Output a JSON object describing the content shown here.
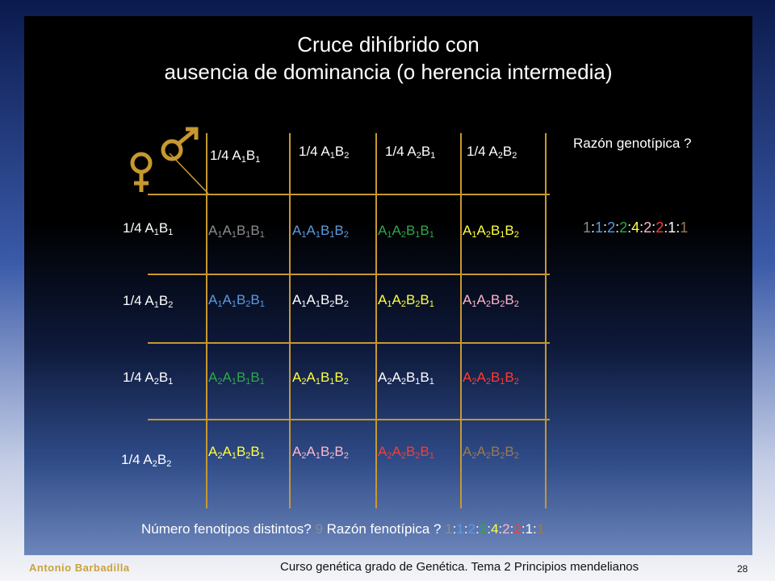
{
  "title_line1": "Cruce dihíbrido con",
  "title_line2": "ausencia de dominancia (o herencia intermedia)",
  "symbols": {
    "female": "female-symbol",
    "male": "male-symbol"
  },
  "header_genotype_label": "Razón genotípica ?",
  "columns": [
    [
      {
        "t": "1/4 A"
      },
      {
        "s": "1"
      },
      {
        "t": "B"
      },
      {
        "s": "1"
      }
    ],
    [
      {
        "t": "1/4 A"
      },
      {
        "s": "1"
      },
      {
        "t": "B"
      },
      {
        "s": "2"
      }
    ],
    [
      {
        "t": "1/4 A"
      },
      {
        "s": "2"
      },
      {
        "t": "B"
      },
      {
        "s": "1"
      }
    ],
    [
      {
        "t": "1/4 A"
      },
      {
        "s": "2"
      },
      {
        "t": "B"
      },
      {
        "s": "2"
      }
    ]
  ],
  "rows": [
    [
      {
        "t": "1/4 A"
      },
      {
        "s": "1"
      },
      {
        "t": "B"
      },
      {
        "s": "1"
      }
    ],
    [
      {
        "t": "1/4 A"
      },
      {
        "s": "1"
      },
      {
        "t": "B"
      },
      {
        "s": "2"
      }
    ],
    [
      {
        "t": "1/4 A"
      },
      {
        "s": "2"
      },
      {
        "t": "B"
      },
      {
        "s": "1"
      }
    ],
    [
      {
        "t": "1/4 A"
      },
      {
        "s": "2"
      },
      {
        "t": "B"
      },
      {
        "s": "2"
      }
    ]
  ],
  "cells": [
    [
      {
        "color": "#8c8c8c",
        "parts": [
          {
            "t": "A"
          },
          {
            "s": "1"
          },
          {
            "t": "A"
          },
          {
            "s": "1"
          },
          {
            "t": "B"
          },
          {
            "s": "1"
          },
          {
            "t": "B"
          },
          {
            "s": "1"
          }
        ]
      },
      {
        "color": "#5b9be0",
        "parts": [
          {
            "t": "A"
          },
          {
            "s": "1"
          },
          {
            "t": "A"
          },
          {
            "s": "1"
          },
          {
            "t": "B"
          },
          {
            "s": "1"
          },
          {
            "t": "B"
          },
          {
            "s": "2"
          }
        ]
      },
      {
        "color": "#2ea84a",
        "parts": [
          {
            "t": "A"
          },
          {
            "s": "1"
          },
          {
            "t": "A"
          },
          {
            "s": "2"
          },
          {
            "t": "B"
          },
          {
            "s": "1"
          },
          {
            "t": "B"
          },
          {
            "s": "1"
          }
        ]
      },
      {
        "color": "#ffff40",
        "parts": [
          {
            "t": "A"
          },
          {
            "s": "1"
          },
          {
            "t": "A"
          },
          {
            "s": "2"
          },
          {
            "t": "B"
          },
          {
            "s": "1"
          },
          {
            "t": "B"
          },
          {
            "s": "2"
          }
        ]
      }
    ],
    [
      {
        "color": "#5b9be0",
        "parts": [
          {
            "t": "A"
          },
          {
            "s": "1"
          },
          {
            "t": "A"
          },
          {
            "s": "1"
          },
          {
            "t": "B"
          },
          {
            "s": "2"
          },
          {
            "t": "B"
          },
          {
            "s": "1"
          }
        ]
      },
      {
        "color": "#ffffff",
        "parts": [
          {
            "t": "A"
          },
          {
            "s": "1"
          },
          {
            "t": "A"
          },
          {
            "s": "1"
          },
          {
            "t": "B"
          },
          {
            "s": "2"
          },
          {
            "t": "B"
          },
          {
            "s": "2"
          }
        ]
      },
      {
        "color": "#ffff40",
        "parts": [
          {
            "t": "A"
          },
          {
            "s": "1"
          },
          {
            "t": "A"
          },
          {
            "s": "2"
          },
          {
            "t": "B"
          },
          {
            "s": "2"
          },
          {
            "t": "B"
          },
          {
            "s": "1"
          }
        ]
      },
      {
        "color": "#ffb7c8",
        "parts": [
          {
            "t": "A"
          },
          {
            "s": "1"
          },
          {
            "t": "A"
          },
          {
            "s": "2"
          },
          {
            "t": "B"
          },
          {
            "s": "2"
          },
          {
            "t": "B"
          },
          {
            "s": "2"
          }
        ]
      }
    ],
    [
      {
        "color": "#2ea84a",
        "parts": [
          {
            "t": "A"
          },
          {
            "s": "2"
          },
          {
            "t": "A"
          },
          {
            "s": "1"
          },
          {
            "t": "B"
          },
          {
            "s": "1"
          },
          {
            "t": "B"
          },
          {
            "s": "1"
          }
        ]
      },
      {
        "color": "#ffff40",
        "parts": [
          {
            "t": "A"
          },
          {
            "s": "2"
          },
          {
            "t": "A"
          },
          {
            "s": "1"
          },
          {
            "t": "B"
          },
          {
            "s": "1"
          },
          {
            "t": "B"
          },
          {
            "s": "2"
          }
        ]
      },
      {
        "color": "#ffffff",
        "parts": [
          {
            "t": "A"
          },
          {
            "s": "2"
          },
          {
            "t": "A"
          },
          {
            "s": "2"
          },
          {
            "t": "B"
          },
          {
            "s": "1"
          },
          {
            "t": "B"
          },
          {
            "s": "1"
          }
        ]
      },
      {
        "color": "#ff3b30",
        "parts": [
          {
            "t": "A"
          },
          {
            "s": "2"
          },
          {
            "t": "A"
          },
          {
            "s": "2"
          },
          {
            "t": "B"
          },
          {
            "s": "1"
          },
          {
            "t": "B"
          },
          {
            "s": "2"
          }
        ]
      }
    ],
    [
      {
        "color": "#ffff40",
        "parts": [
          {
            "t": "A"
          },
          {
            "s": "2"
          },
          {
            "t": "A"
          },
          {
            "s": "1"
          },
          {
            "t": "B"
          },
          {
            "s": "2"
          },
          {
            "t": "B"
          },
          {
            "s": "1"
          }
        ]
      },
      {
        "color": "#ffb7c8",
        "parts": [
          {
            "t": "A"
          },
          {
            "s": "2"
          },
          {
            "t": "A"
          },
          {
            "s": "1"
          },
          {
            "t": "B"
          },
          {
            "s": "2"
          },
          {
            "t": "B"
          },
          {
            "s": "2"
          }
        ]
      },
      {
        "color": "#ff3b30",
        "parts": [
          {
            "t": "A"
          },
          {
            "s": "2"
          },
          {
            "t": "A"
          },
          {
            "s": "2"
          },
          {
            "t": "B"
          },
          {
            "s": "2"
          },
          {
            "t": "B"
          },
          {
            "s": "1"
          }
        ]
      },
      {
        "color": "#9a7a52",
        "parts": [
          {
            "t": "A"
          },
          {
            "s": "2"
          },
          {
            "t": "A"
          },
          {
            "s": "2"
          },
          {
            "t": "B"
          },
          {
            "s": "2"
          },
          {
            "t": "B"
          },
          {
            "s": "2"
          }
        ]
      }
    ]
  ],
  "genotype_ratio": [
    {
      "t": "1",
      "color": "#8c8c8c"
    },
    {
      "t": ":",
      "color": "#ffffff"
    },
    {
      "t": "1",
      "color": "#5b9be0"
    },
    {
      "t": ":",
      "color": "#ffffff"
    },
    {
      "t": "2",
      "color": "#5b9be0"
    },
    {
      "t": ":",
      "color": "#ffffff"
    },
    {
      "t": "2",
      "color": "#2ea84a"
    },
    {
      "t": ":",
      "color": "#ffffff"
    },
    {
      "t": "4",
      "color": "#ffff40"
    },
    {
      "t": ":",
      "color": "#ffffff"
    },
    {
      "t": "2",
      "color": "#ffb7c8"
    },
    {
      "t": ":",
      "color": "#ffffff"
    },
    {
      "t": "2",
      "color": "#ff3b30"
    },
    {
      "t": ":",
      "color": "#ffffff"
    },
    {
      "t": "1",
      "color": "#ffffff"
    },
    {
      "t": ":",
      "color": "#ffffff"
    },
    {
      "t": "1",
      "color": "#9a7a52"
    }
  ],
  "bottom": {
    "q1": "Número fenotipos distintos? ",
    "answer1": "9",
    "q2": " Razón fenotípica ? ",
    "answer1_color": "#8c8c8c"
  },
  "phenotype_ratio": [
    {
      "t": "1",
      "color": "#8c8c8c"
    },
    {
      "t": ":",
      "color": "#ffffff"
    },
    {
      "t": "1",
      "color": "#5b9be0"
    },
    {
      "t": ":",
      "color": "#ffffff"
    },
    {
      "t": "2",
      "color": "#5b9be0"
    },
    {
      "t": ":",
      "color": "#ffffff"
    },
    {
      "t": "2",
      "color": "#2ea84a"
    },
    {
      "t": ":",
      "color": "#ffffff"
    },
    {
      "t": "4",
      "color": "#ffff40"
    },
    {
      "t": ":",
      "color": "#ffffff"
    },
    {
      "t": "2",
      "color": "#ffb7c8"
    },
    {
      "t": ":",
      "color": "#ffffff"
    },
    {
      "t": "2",
      "color": "#ff3b30"
    },
    {
      "t": ":",
      "color": "#ffffff"
    },
    {
      "t": "1",
      "color": "#ffffff"
    },
    {
      "t": ":",
      "color": "#ffffff"
    },
    {
      "t": "1",
      "color": "#9a7a52"
    }
  ],
  "author": "Antonio Barbadilla",
  "footer": "Curso genética grado de Genética. Tema 2 Principios mendelianos",
  "page_number": "28",
  "colors": {
    "grid": "#c7982f",
    "title": "#ffffff",
    "author": "#caa23e"
  }
}
